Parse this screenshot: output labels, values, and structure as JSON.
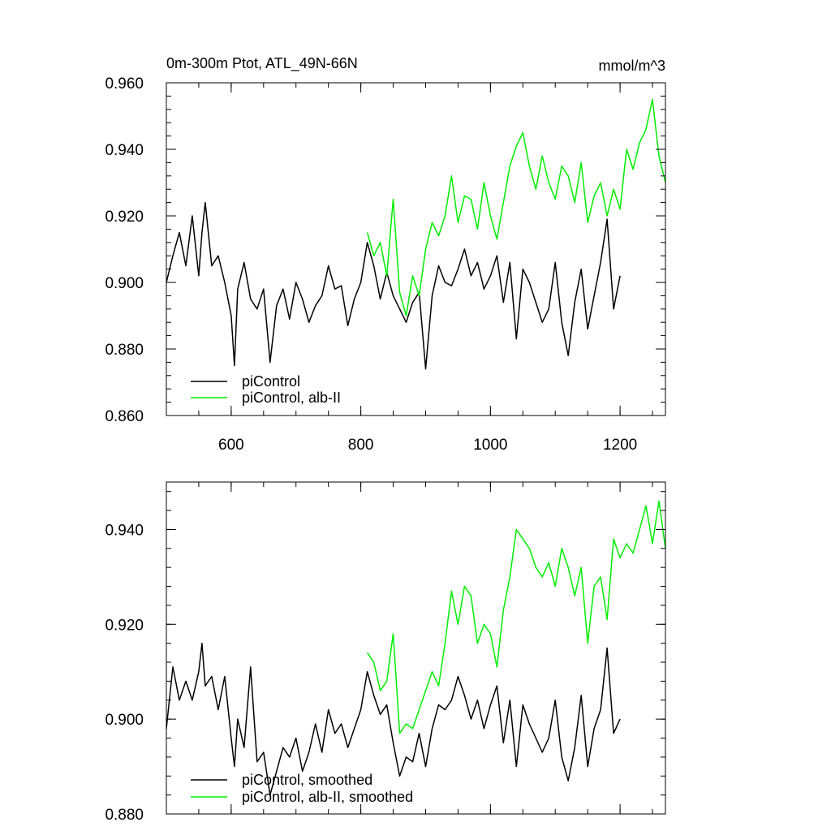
{
  "chart_data": [
    {
      "type": "line",
      "title": "0m-300m Ptot, ATL_49N-66N",
      "units": "mmol/m^3",
      "xlim": [
        500,
        1270
      ],
      "ylim": [
        0.86,
        0.96
      ],
      "x_ticks": [
        600,
        800,
        1000,
        1200
      ],
      "x_tick_labels": [
        "600",
        "800",
        "1000",
        "1200"
      ],
      "y_ticks": [
        0.86,
        0.88,
        0.9,
        0.92,
        0.94,
        0.96
      ],
      "y_tick_labels": [
        "0.860",
        "0.880",
        "0.900",
        "0.920",
        "0.940",
        "0.960"
      ],
      "legend_position": "bottom-left",
      "series": [
        {
          "name": "piControl",
          "color": "#000000",
          "x": [
            500,
            510,
            520,
            530,
            540,
            550,
            555,
            560,
            570,
            580,
            590,
            600,
            605,
            610,
            620,
            630,
            640,
            650,
            660,
            670,
            680,
            690,
            700,
            710,
            720,
            730,
            740,
            750,
            760,
            770,
            780,
            790,
            800,
            810,
            820,
            830,
            840,
            850,
            860,
            870,
            880,
            890,
            900,
            910,
            920,
            930,
            940,
            950,
            960,
            970,
            980,
            990,
            1000,
            1010,
            1020,
            1030,
            1040,
            1050,
            1060,
            1070,
            1080,
            1090,
            1100,
            1110,
            1120,
            1130,
            1140,
            1150,
            1160,
            1170,
            1180,
            1190,
            1200
          ],
          "y": [
            0.9,
            0.908,
            0.915,
            0.905,
            0.92,
            0.902,
            0.915,
            0.924,
            0.905,
            0.908,
            0.9,
            0.89,
            0.875,
            0.898,
            0.906,
            0.895,
            0.892,
            0.898,
            0.876,
            0.893,
            0.898,
            0.889,
            0.9,
            0.895,
            0.888,
            0.893,
            0.896,
            0.905,
            0.898,
            0.899,
            0.887,
            0.895,
            0.9,
            0.912,
            0.905,
            0.895,
            0.903,
            0.896,
            0.892,
            0.888,
            0.894,
            0.897,
            0.874,
            0.896,
            0.905,
            0.9,
            0.899,
            0.904,
            0.91,
            0.902,
            0.906,
            0.898,
            0.902,
            0.908,
            0.894,
            0.906,
            0.883,
            0.904,
            0.9,
            0.894,
            0.888,
            0.892,
            0.906,
            0.888,
            0.878,
            0.894,
            0.904,
            0.886,
            0.896,
            0.906,
            0.919,
            0.892,
            0.902
          ]
        },
        {
          "name": "piControl, alb-II",
          "color": "#00ee00",
          "x": [
            810,
            820,
            830,
            840,
            850,
            860,
            870,
            880,
            890,
            900,
            910,
            920,
            930,
            940,
            950,
            960,
            970,
            980,
            990,
            1000,
            1010,
            1020,
            1030,
            1040,
            1050,
            1060,
            1070,
            1080,
            1090,
            1100,
            1110,
            1120,
            1130,
            1140,
            1150,
            1160,
            1170,
            1180,
            1190,
            1200,
            1210,
            1220,
            1230,
            1240,
            1250,
            1260,
            1270
          ],
          "y": [
            0.915,
            0.908,
            0.912,
            0.902,
            0.925,
            0.897,
            0.89,
            0.902,
            0.896,
            0.91,
            0.918,
            0.914,
            0.92,
            0.932,
            0.918,
            0.926,
            0.925,
            0.916,
            0.93,
            0.92,
            0.913,
            0.924,
            0.935,
            0.941,
            0.945,
            0.935,
            0.928,
            0.938,
            0.93,
            0.925,
            0.935,
            0.932,
            0.924,
            0.936,
            0.918,
            0.926,
            0.93,
            0.92,
            0.928,
            0.922,
            0.94,
            0.934,
            0.942,
            0.946,
            0.955,
            0.938,
            0.93
          ]
        }
      ]
    },
    {
      "type": "line",
      "xlim": [
        500,
        1270
      ],
      "ylim": [
        0.88,
        0.95
      ],
      "x_ticks": [
        600,
        800,
        1000,
        1200
      ],
      "y_ticks": [
        0.88,
        0.9,
        0.92,
        0.94
      ],
      "y_tick_labels": [
        "0.880",
        "0.900",
        "0.920",
        "0.940"
      ],
      "legend_position": "bottom-left",
      "series": [
        {
          "name": "piControl, smoothed",
          "color": "#000000",
          "x": [
            500,
            510,
            520,
            530,
            540,
            550,
            555,
            560,
            570,
            580,
            590,
            600,
            605,
            610,
            620,
            630,
            640,
            650,
            660,
            670,
            680,
            690,
            700,
            710,
            720,
            730,
            740,
            750,
            760,
            770,
            780,
            790,
            800,
            810,
            820,
            830,
            840,
            850,
            860,
            870,
            880,
            890,
            900,
            910,
            920,
            930,
            940,
            950,
            960,
            970,
            980,
            990,
            1000,
            1010,
            1020,
            1030,
            1040,
            1050,
            1060,
            1070,
            1080,
            1090,
            1100,
            1110,
            1120,
            1130,
            1140,
            1150,
            1160,
            1170,
            1180,
            1190,
            1200
          ],
          "y": [
            0.898,
            0.911,
            0.904,
            0.908,
            0.904,
            0.91,
            0.916,
            0.907,
            0.909,
            0.902,
            0.909,
            0.896,
            0.89,
            0.9,
            0.894,
            0.911,
            0.891,
            0.893,
            0.884,
            0.889,
            0.894,
            0.892,
            0.896,
            0.889,
            0.893,
            0.899,
            0.893,
            0.902,
            0.897,
            0.899,
            0.894,
            0.898,
            0.902,
            0.91,
            0.905,
            0.901,
            0.903,
            0.895,
            0.888,
            0.892,
            0.891,
            0.897,
            0.89,
            0.898,
            0.903,
            0.902,
            0.904,
            0.909,
            0.905,
            0.9,
            0.904,
            0.898,
            0.903,
            0.907,
            0.895,
            0.904,
            0.89,
            0.903,
            0.899,
            0.896,
            0.893,
            0.896,
            0.904,
            0.892,
            0.887,
            0.894,
            0.905,
            0.89,
            0.898,
            0.902,
            0.915,
            0.897,
            0.9
          ]
        },
        {
          "name": "piControl, alb-II, smoothed",
          "color": "#00ee00",
          "x": [
            810,
            820,
            830,
            840,
            850,
            860,
            870,
            880,
            890,
            900,
            910,
            920,
            930,
            940,
            950,
            960,
            970,
            980,
            990,
            1000,
            1010,
            1020,
            1030,
            1040,
            1050,
            1060,
            1070,
            1080,
            1090,
            1100,
            1110,
            1120,
            1130,
            1140,
            1150,
            1160,
            1170,
            1180,
            1190,
            1200,
            1210,
            1220,
            1230,
            1240,
            1250,
            1260,
            1270
          ],
          "y": [
            0.914,
            0.912,
            0.906,
            0.908,
            0.918,
            0.897,
            0.899,
            0.898,
            0.902,
            0.906,
            0.91,
            0.907,
            0.916,
            0.927,
            0.92,
            0.928,
            0.926,
            0.916,
            0.92,
            0.918,
            0.911,
            0.923,
            0.93,
            0.94,
            0.938,
            0.936,
            0.932,
            0.93,
            0.933,
            0.928,
            0.936,
            0.932,
            0.926,
            0.932,
            0.916,
            0.928,
            0.93,
            0.921,
            0.938,
            0.934,
            0.937,
            0.935,
            0.94,
            0.945,
            0.937,
            0.946,
            0.936
          ]
        }
      ]
    }
  ]
}
